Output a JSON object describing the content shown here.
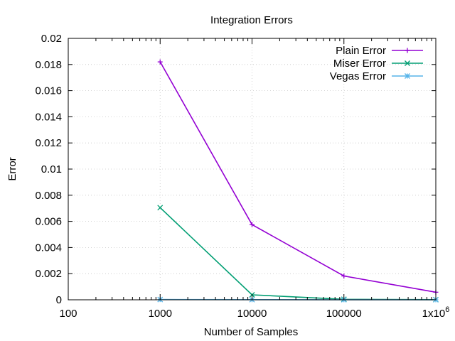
{
  "chart_data": {
    "type": "line",
    "title": "Integration Errors",
    "xlabel": "Number of Samples",
    "ylabel": "Error",
    "x_scale": "log",
    "xlim": [
      100,
      1000000
    ],
    "ylim": [
      0,
      0.02
    ],
    "x_ticks": [
      {
        "value": 100,
        "label": "100"
      },
      {
        "value": 1000,
        "label": "1000"
      },
      {
        "value": 10000,
        "label": "10000"
      },
      {
        "value": 100000,
        "label": "100000"
      },
      {
        "value": 1000000,
        "label": "1x10",
        "sup": "6"
      }
    ],
    "y_ticks": [
      {
        "value": 0,
        "label": "0"
      },
      {
        "value": 0.002,
        "label": "0.002"
      },
      {
        "value": 0.004,
        "label": "0.004"
      },
      {
        "value": 0.006,
        "label": "0.006"
      },
      {
        "value": 0.008,
        "label": "0.008"
      },
      {
        "value": 0.01,
        "label": "0.01"
      },
      {
        "value": 0.012,
        "label": "0.012"
      },
      {
        "value": 0.014,
        "label": "0.014"
      },
      {
        "value": 0.016,
        "label": "0.016"
      },
      {
        "value": 0.018,
        "label": "0.018"
      },
      {
        "value": 0.02,
        "label": "0.02"
      }
    ],
    "grid": true,
    "legend_position": "top-right",
    "x": [
      1000,
      10000,
      100000,
      1000000
    ],
    "series": [
      {
        "name": "Plain Error",
        "color": "#9400d3",
        "marker": "plus",
        "values": [
          0.0182,
          0.00575,
          0.00182,
          0.00058
        ]
      },
      {
        "name": "Miser Error",
        "color": "#009e73",
        "marker": "cross",
        "values": [
          0.00705,
          0.00038,
          4e-05,
          1e-05
        ]
      },
      {
        "name": "Vegas Error",
        "color": "#56b4e9",
        "marker": "star",
        "values": [
          2e-05,
          1e-05,
          5e-06,
          2e-06
        ]
      }
    ]
  }
}
